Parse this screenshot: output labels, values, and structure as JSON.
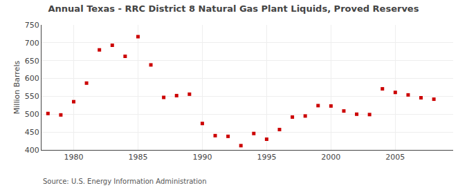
{
  "chart_data": {
    "type": "scatter",
    "title": "Annual Texas - RRC District 8 Natural Gas Plant Liquids, Proved Reserves",
    "ylabel": "Million Barrels",
    "annotations": [
      "Source: U.S. Energy Information Administration"
    ],
    "x": [
      1978,
      1979,
      1980,
      1981,
      1982,
      1983,
      1984,
      1985,
      1986,
      1987,
      1988,
      1989,
      1990,
      1991,
      1992,
      1993,
      1994,
      1995,
      1996,
      1997,
      1998,
      1999,
      2000,
      2001,
      2002,
      2003,
      2004,
      2005,
      2006,
      2007,
      2008
    ],
    "values": [
      502,
      498,
      535,
      587,
      680,
      693,
      662,
      717,
      638,
      547,
      552,
      556,
      474,
      440,
      438,
      412,
      446,
      430,
      457,
      492,
      495,
      524,
      523,
      509,
      500,
      499,
      571,
      561,
      554,
      546,
      542
    ],
    "color": "#cc0000",
    "marker": "square",
    "xlim": [
      1977.5,
      2009.5
    ],
    "ylim": [
      400,
      750
    ],
    "xticks": [
      1980,
      1985,
      1990,
      1995,
      2000,
      2005
    ],
    "yticks": [
      400,
      450,
      500,
      550,
      600,
      650,
      700,
      750
    ],
    "grid": true
  }
}
